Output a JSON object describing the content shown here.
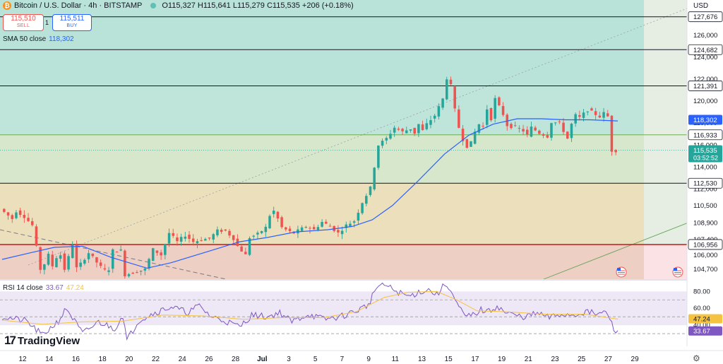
{
  "header": {
    "title": "Bitcoin / U.S. Dollar · 4h · BITSTAMP",
    "coin_symbol": "₿",
    "ohlc": "O115,327 H115,641 L115,279 C115,535 +206 (+0.18%)"
  },
  "trade": {
    "sell_price": "115,510",
    "sell_label": "SELL",
    "spread": "1",
    "buy_price": "115,511",
    "buy_label": "BUY"
  },
  "sma": {
    "label": "SMA 50 close",
    "value": "118,302"
  },
  "rsi": {
    "label": "RSI 14 close",
    "value": "33.67",
    "ma_value": "47.24"
  },
  "branding": {
    "logo_text": "TradingView",
    "logo_mark": "17"
  },
  "currency": "USD",
  "settings_icon": "gear-icon",
  "colors": {
    "up": "#26a69a",
    "down": "#ef5350",
    "sma": "#2962ff",
    "rsi": "#7e57c2",
    "rsi_ma": "#f5c342"
  },
  "chart_data": {
    "type": "candlestick",
    "symbol": "BTCUSD",
    "exchange": "BITSTAMP",
    "interval": "4h",
    "ylim": [
      103800,
      129200
    ],
    "y_ticks": [
      104700,
      106000,
      107400,
      108900,
      110500,
      112000,
      114000,
      116000,
      118000,
      120000,
      122000,
      124000,
      126000
    ],
    "y_tick_labels": [
      "104,700",
      "106,000",
      "107,400",
      "108,900",
      "110,500",
      "112,000",
      "114,000",
      "116,000",
      "118,000",
      "120,000",
      "122,000",
      "124,000",
      "126,000"
    ],
    "x_labels": [
      "12",
      "14",
      "16",
      "18",
      "20",
      "22",
      "24",
      "26",
      "28",
      "Jul",
      "3",
      "5",
      "7",
      "9",
      "11",
      "13",
      "15",
      "17",
      "19",
      "21",
      "23",
      "25",
      "27",
      "29"
    ],
    "path_points": [
      [
        0,
        110200
      ],
      [
        3,
        109300
      ],
      [
        4,
        110000
      ],
      [
        6,
        109500
      ],
      [
        8,
        108700
      ],
      [
        9,
        106700
      ],
      [
        10,
        104700
      ],
      [
        11,
        105200
      ],
      [
        12,
        106000
      ],
      [
        13,
        105000
      ],
      [
        14,
        105800
      ],
      [
        15,
        106000
      ],
      [
        16,
        104700
      ],
      [
        17,
        105800
      ],
      [
        18,
        107000
      ],
      [
        19,
        104800
      ],
      [
        20,
        105200
      ],
      [
        22,
        106200
      ],
      [
        25,
        104900
      ],
      [
        26,
        104600
      ],
      [
        27,
        104700
      ],
      [
        28,
        106400
      ],
      [
        30,
        106400
      ],
      [
        31,
        104200
      ],
      [
        36,
        104700
      ],
      [
        37,
        105600
      ],
      [
        38,
        106500
      ],
      [
        40,
        106000
      ],
      [
        42,
        108000
      ],
      [
        44,
        107200
      ],
      [
        46,
        107800
      ],
      [
        47,
        107500
      ],
      [
        48,
        107200
      ],
      [
        50,
        107400
      ],
      [
        52,
        107500
      ],
      [
        54,
        108200
      ],
      [
        56,
        108200
      ],
      [
        58,
        107500
      ],
      [
        59,
        106800
      ],
      [
        61,
        106000
      ],
      [
        62,
        107600
      ],
      [
        64,
        107900
      ],
      [
        66,
        108500
      ],
      [
        67,
        109600
      ],
      [
        68,
        110000
      ],
      [
        69,
        109300
      ],
      [
        70,
        108500
      ],
      [
        72,
        108100
      ],
      [
        73,
        108000
      ],
      [
        74,
        108200
      ],
      [
        76,
        108600
      ],
      [
        78,
        108300
      ],
      [
        80,
        109000
      ],
      [
        82,
        108600
      ],
      [
        84,
        108000
      ],
      [
        86,
        108700
      ],
      [
        88,
        109100
      ],
      [
        90,
        110800
      ],
      [
        92,
        112100
      ],
      [
        94,
        116000
      ],
      [
        96,
        116600
      ],
      [
        98,
        117600
      ],
      [
        100,
        117200
      ],
      [
        102,
        117500
      ],
      [
        103,
        117100
      ],
      [
        104,
        117900
      ],
      [
        105,
        117300
      ],
      [
        106,
        117900
      ],
      [
        108,
        118700
      ],
      [
        110,
        120200
      ],
      [
        111,
        122100
      ],
      [
        112,
        121400
      ],
      [
        113,
        119200
      ],
      [
        114,
        117600
      ],
      [
        115,
        116500
      ],
      [
        116,
        115900
      ],
      [
        117,
        116200
      ],
      [
        118,
        117200
      ],
      [
        119,
        117900
      ],
      [
        120,
        117700
      ],
      [
        121,
        119300
      ],
      [
        122,
        118400
      ],
      [
        123,
        120200
      ],
      [
        124,
        119500
      ],
      [
        125,
        118800
      ],
      [
        126,
        117800
      ],
      [
        128,
        117600
      ],
      [
        130,
        117300
      ],
      [
        131,
        116900
      ],
      [
        132,
        117600
      ],
      [
        134,
        117100
      ],
      [
        136,
        116800
      ],
      [
        137,
        118100
      ],
      [
        139,
        118000
      ],
      [
        140,
        117300
      ],
      [
        141,
        116600
      ],
      [
        142,
        117900
      ],
      [
        143,
        118700
      ],
      [
        144,
        118500
      ],
      [
        146,
        119200
      ],
      [
        148,
        118800
      ],
      [
        149,
        118600
      ],
      [
        150,
        118900
      ],
      [
        151,
        118600
      ],
      [
        152,
        115500
      ],
      [
        153,
        115500
      ]
    ],
    "sma_points": [
      [
        0,
        105600
      ],
      [
        7,
        106200
      ],
      [
        13,
        106700
      ],
      [
        20,
        106800
      ],
      [
        27,
        105800
      ],
      [
        36,
        104800
      ],
      [
        42,
        105300
      ],
      [
        51,
        106300
      ],
      [
        59,
        107200
      ],
      [
        66,
        107600
      ],
      [
        73,
        108100
      ],
      [
        81,
        108300
      ],
      [
        87,
        108600
      ],
      [
        92,
        109200
      ],
      [
        97,
        110500
      ],
      [
        103,
        112600
      ],
      [
        110,
        115200
      ],
      [
        116,
        116900
      ],
      [
        122,
        117900
      ],
      [
        128,
        118400
      ],
      [
        134,
        118400
      ],
      [
        140,
        118300
      ],
      [
        146,
        118300
      ],
      [
        153,
        118200
      ]
    ],
    "rsi_ylim": [
      15,
      92
    ],
    "rsi_ticks": [
      40,
      60,
      80
    ],
    "rsi_points": [
      [
        0,
        50
      ],
      [
        6,
        45
      ],
      [
        10,
        28
      ],
      [
        14,
        45
      ],
      [
        16,
        60
      ],
      [
        20,
        30
      ],
      [
        24,
        44
      ],
      [
        28,
        36
      ],
      [
        30,
        52
      ],
      [
        31,
        22
      ],
      [
        34,
        46
      ],
      [
        38,
        55
      ],
      [
        42,
        62
      ],
      [
        46,
        55
      ],
      [
        49,
        63
      ],
      [
        52,
        50
      ],
      [
        55,
        46
      ],
      [
        59,
        38
      ],
      [
        62,
        52
      ],
      [
        66,
        50
      ],
      [
        69,
        55
      ],
      [
        72,
        44
      ],
      [
        76,
        53
      ],
      [
        80,
        47
      ],
      [
        84,
        50
      ],
      [
        88,
        57
      ],
      [
        91,
        64
      ],
      [
        93,
        85
      ],
      [
        95,
        88
      ],
      [
        98,
        80
      ],
      [
        101,
        74
      ],
      [
        104,
        80
      ],
      [
        106,
        82
      ],
      [
        108,
        76
      ],
      [
        110,
        88
      ],
      [
        111,
        86
      ],
      [
        113,
        65
      ],
      [
        115,
        50
      ],
      [
        117,
        52
      ],
      [
        119,
        58
      ],
      [
        121,
        56
      ],
      [
        123,
        63
      ],
      [
        125,
        55
      ],
      [
        128,
        51
      ],
      [
        130,
        50
      ],
      [
        133,
        54
      ],
      [
        136,
        49
      ],
      [
        139,
        53
      ],
      [
        142,
        52
      ],
      [
        145,
        56
      ],
      [
        148,
        53
      ],
      [
        150,
        55
      ],
      [
        151,
        49
      ],
      [
        152,
        33
      ],
      [
        153,
        33.67
      ]
    ],
    "rsi_ma_points": [
      [
        0,
        46
      ],
      [
        10,
        41
      ],
      [
        20,
        44
      ],
      [
        30,
        45
      ],
      [
        40,
        52
      ],
      [
        50,
        51
      ],
      [
        60,
        47
      ],
      [
        70,
        49
      ],
      [
        80,
        49
      ],
      [
        88,
        56
      ],
      [
        95,
        73
      ],
      [
        101,
        79
      ],
      [
        108,
        80
      ],
      [
        113,
        70
      ],
      [
        118,
        57
      ],
      [
        125,
        56
      ],
      [
        135,
        53
      ],
      [
        145,
        53
      ],
      [
        153,
        47.24
      ]
    ],
    "price_lines": [
      {
        "value": 127676,
        "label": "127,676"
      },
      {
        "value": 124682,
        "label": "124,682"
      },
      {
        "value": 121391,
        "label": "121,391"
      },
      {
        "value": 116933,
        "label": "116,933"
      },
      {
        "value": 112530,
        "label": "112,530"
      },
      {
        "value": 106956,
        "label": "106,956"
      }
    ],
    "axis_tags": [
      {
        "value": 118302,
        "label": "118,302",
        "color": "#2962ff"
      },
      {
        "value": 115535,
        "label": "115,535",
        "sub": "03:52:52",
        "color": "#26a69a"
      }
    ],
    "zones": [
      {
        "from": 121391,
        "to": 129200,
        "color": "#b9e3d9"
      },
      {
        "from": 116933,
        "to": 121391,
        "color": "#bfe4da"
      },
      {
        "from": 112530,
        "to": 116933,
        "color": "#d7e7cc"
      },
      {
        "from": 106956,
        "to": 112530,
        "color": "#ecdfbc"
      },
      {
        "from": 103800,
        "to": 106956,
        "color": "#edcfc4"
      }
    ]
  }
}
